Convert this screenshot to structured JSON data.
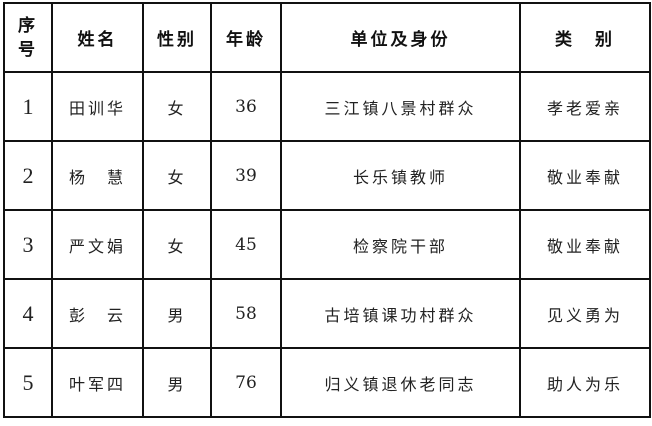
{
  "headers": [
    "序号",
    "姓名",
    "性别",
    "年龄",
    "单位及身份",
    "类　别"
  ],
  "rows": [
    {
      "seq": "1",
      "name": "田训华",
      "gender": "女",
      "age": "36",
      "unit": "三江镇八景村群众",
      "category": "孝老爱亲"
    },
    {
      "seq": "2",
      "name": "杨　慧",
      "gender": "女",
      "age": "39",
      "unit": "长乐镇教师",
      "category": "敬业奉献"
    },
    {
      "seq": "3",
      "name": "严文娟",
      "gender": "女",
      "age": "45",
      "unit": "检察院干部",
      "category": "敬业奉献"
    },
    {
      "seq": "4",
      "name": "彭　云",
      "gender": "男",
      "age": "58",
      "unit": "古培镇课功村群众",
      "category": "见义勇为"
    },
    {
      "seq": "5",
      "name": "叶军四",
      "gender": "男",
      "age": "76",
      "unit": "归义镇退休老同志",
      "category": "助人为乐"
    }
  ]
}
